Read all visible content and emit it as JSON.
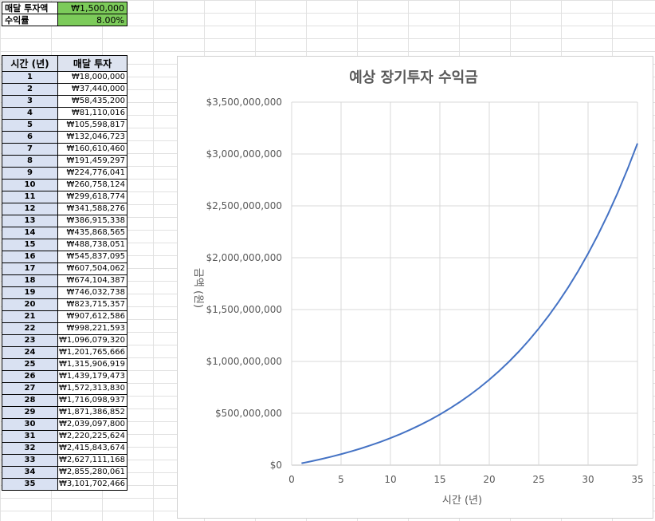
{
  "inputs": {
    "monthly_label": "매달 투자액",
    "monthly_value": "₩1,500,000",
    "rate_label": "수익률",
    "rate_value": "8.00%"
  },
  "table": {
    "headers": [
      "시간 (년)",
      "매달 투자"
    ],
    "rows": [
      {
        "year": "1",
        "amount": "₩18,000,000"
      },
      {
        "year": "2",
        "amount": "₩37,440,000"
      },
      {
        "year": "3",
        "amount": "₩58,435,200"
      },
      {
        "year": "4",
        "amount": "₩81,110,016"
      },
      {
        "year": "5",
        "amount": "₩105,598,817"
      },
      {
        "year": "6",
        "amount": "₩132,046,723"
      },
      {
        "year": "7",
        "amount": "₩160,610,460"
      },
      {
        "year": "8",
        "amount": "₩191,459,297"
      },
      {
        "year": "9",
        "amount": "₩224,776,041"
      },
      {
        "year": "10",
        "amount": "₩260,758,124"
      },
      {
        "year": "11",
        "amount": "₩299,618,774"
      },
      {
        "year": "12",
        "amount": "₩341,588,276"
      },
      {
        "year": "13",
        "amount": "₩386,915,338"
      },
      {
        "year": "14",
        "amount": "₩435,868,565"
      },
      {
        "year": "15",
        "amount": "₩488,738,051"
      },
      {
        "year": "16",
        "amount": "₩545,837,095"
      },
      {
        "year": "17",
        "amount": "₩607,504,062"
      },
      {
        "year": "18",
        "amount": "₩674,104,387"
      },
      {
        "year": "19",
        "amount": "₩746,032,738"
      },
      {
        "year": "20",
        "amount": "₩823,715,357"
      },
      {
        "year": "21",
        "amount": "₩907,612,586"
      },
      {
        "year": "22",
        "amount": "₩998,221,593"
      },
      {
        "year": "23",
        "amount": "₩1,096,079,320"
      },
      {
        "year": "24",
        "amount": "₩1,201,765,666"
      },
      {
        "year": "25",
        "amount": "₩1,315,906,919"
      },
      {
        "year": "26",
        "amount": "₩1,439,179,473"
      },
      {
        "year": "27",
        "amount": "₩1,572,313,830"
      },
      {
        "year": "28",
        "amount": "₩1,716,098,937"
      },
      {
        "year": "29",
        "amount": "₩1,871,386,852"
      },
      {
        "year": "30",
        "amount": "₩2,039,097,800"
      },
      {
        "year": "31",
        "amount": "₩2,220,225,624"
      },
      {
        "year": "32",
        "amount": "₩2,415,843,674"
      },
      {
        "year": "33",
        "amount": "₩2,627,111,168"
      },
      {
        "year": "34",
        "amount": "₩2,855,280,061"
      },
      {
        "year": "35",
        "amount": "₩3,101,702,466"
      }
    ]
  },
  "chart_data": {
    "type": "line",
    "title": "예상 장기투자 수익금",
    "xlabel": "시간 (년)",
    "ylabel": "금액 (원)",
    "xlim": [
      0,
      35
    ],
    "ylim": [
      0,
      3500000000
    ],
    "x_ticks": [
      "0",
      "5",
      "10",
      "15",
      "20",
      "25",
      "30",
      "35"
    ],
    "y_ticks": [
      "$0",
      "$500,000,000",
      "$1,000,000,000",
      "$1,500,000,000",
      "$2,000,000,000",
      "$2,500,000,000",
      "$3,000,000,000",
      "$3,500,000,000"
    ],
    "grid": true,
    "color": "#4472c4",
    "series": [
      {
        "x": [
          1,
          2,
          3,
          4,
          5,
          6,
          7,
          8,
          9,
          10,
          11,
          12,
          13,
          14,
          15,
          16,
          17,
          18,
          19,
          20,
          21,
          22,
          23,
          24,
          25,
          26,
          27,
          28,
          29,
          30,
          31,
          32,
          33,
          34,
          35
        ],
        "values": [
          18000000,
          37440000,
          58435200,
          81110016,
          105598817,
          132046723,
          160610460,
          191459297,
          224776041,
          260758124,
          299618774,
          341588276,
          386915338,
          435868565,
          488738051,
          545837095,
          607504062,
          674104387,
          746032738,
          823715357,
          907612586,
          998221593,
          1096079320,
          1201765666,
          1315906919,
          1439179473,
          1572313830,
          1716098937,
          1871386852,
          2039097800,
          2220225624,
          2415843674,
          2627111168,
          2855280061,
          3101702466
        ]
      }
    ]
  }
}
